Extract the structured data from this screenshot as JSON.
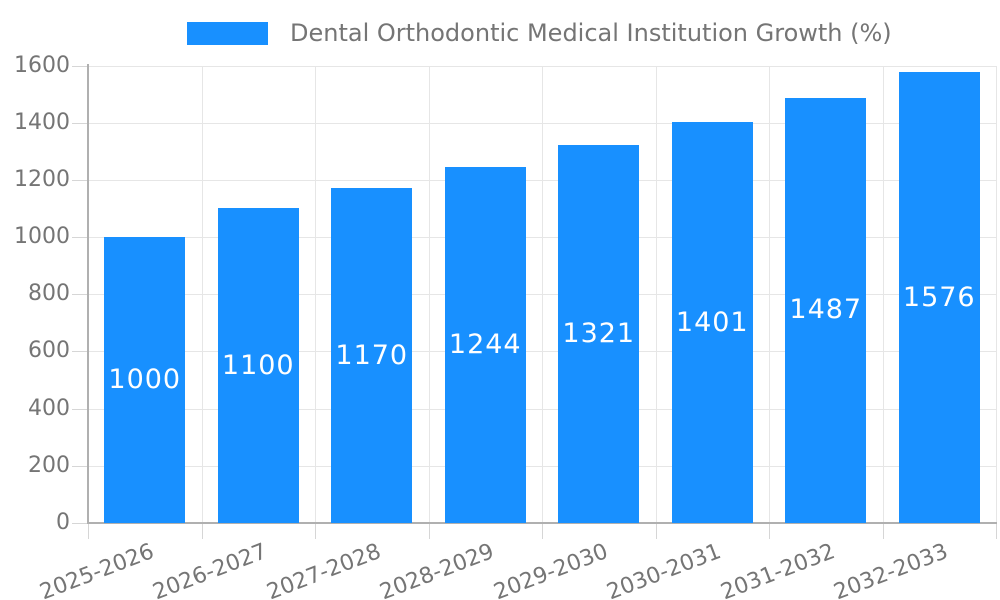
{
  "legend": {
    "series_label": "Dental Orthodontic Medical Institution Growth (%)"
  },
  "chart_data": {
    "type": "bar",
    "title": "Dental Orthodontic Medical Institution Growth (%)",
    "categories": [
      "2025-2026",
      "2026-2027",
      "2027-2028",
      "2028-2029",
      "2029-2030",
      "2030-2031",
      "2031-2032",
      "2032-2033"
    ],
    "series": [
      {
        "name": "Dental Orthodontic Medical Institution Growth (%)",
        "values": [
          1000,
          1100,
          1170,
          1244,
          1321,
          1401,
          1487,
          1576
        ]
      }
    ],
    "values": [
      1000,
      1100,
      1170,
      1244,
      1321,
      1401,
      1487,
      1576
    ],
    "value_labels": [
      "1000",
      "1100",
      "1170",
      "1244",
      "1321",
      "1401",
      "1487",
      "1576"
    ],
    "y_tick_labels": [
      "0",
      "200",
      "400",
      "600",
      "800",
      "1000",
      "1200",
      "1400",
      "1600"
    ],
    "xlabel": "",
    "ylabel": "",
    "ylim": [
      0,
      1600
    ],
    "ytick_step": 200,
    "grid": true,
    "legend_position": "top",
    "x_label_rotation_deg": -21,
    "colors": {
      "bar": "#1890ff",
      "value_label": "#ffffff",
      "axis_text": "#757575",
      "gridline": "#e6e6e6",
      "tick": "#d6d6d6",
      "axis_line": "#b0b0b0",
      "background": "#ffffff"
    }
  }
}
